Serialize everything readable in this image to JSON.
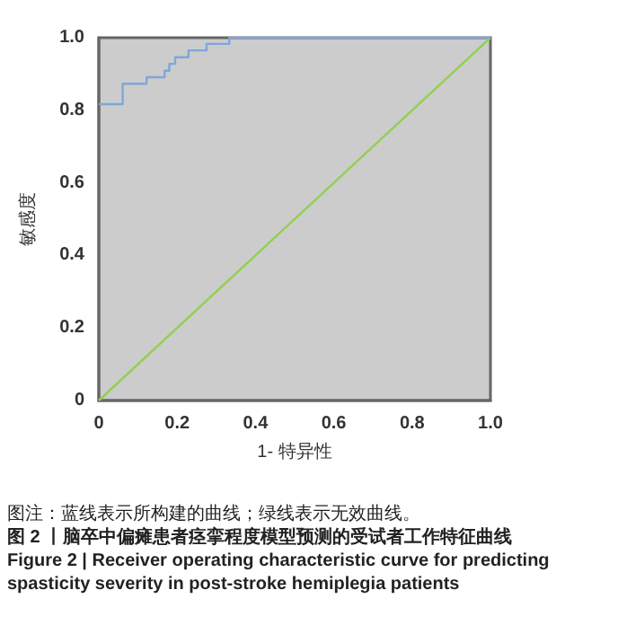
{
  "chart_data": {
    "type": "line",
    "xlabel": "1- 特异性",
    "ylabel": "敏感度",
    "marker": "none",
    "xlim": [
      0,
      1
    ],
    "ylim": [
      0,
      1
    ],
    "xticks": [
      0,
      0.2,
      0.4,
      0.6,
      0.8,
      {
        "value": 1,
        "label": "1.0"
      }
    ],
    "yticks": [
      0,
      0.2,
      0.4,
      0.6,
      0.8,
      {
        "value": 1,
        "label": "1.0"
      }
    ],
    "series": [
      {
        "type": "step",
        "color": "#7ea6dc",
        "x": [
          0,
          0.061,
          0.122,
          0.168,
          0.18,
          0.195,
          0.229,
          0.275,
          0.333,
          1
        ],
        "values": [
          0.817,
          0.873,
          0.891,
          0.909,
          0.928,
          0.946,
          0.965,
          0.983,
          1,
          1
        ]
      },
      {
        "type": "line",
        "color": "#92d050",
        "x": [
          0,
          1
        ],
        "values": [
          0,
          1
        ]
      }
    ],
    "annotations": [
      "图注：蓝线表示所构建的曲线；绿线表示无效曲线。",
      "图 2 丨脑卒中偏瘫患者痉挛程度模型预测的受试者工作特征曲线",
      "Figure 2 | Receiver operating characteristic curve for predicting spasticity severity in post-stroke hemiplegia patients"
    ]
  }
}
